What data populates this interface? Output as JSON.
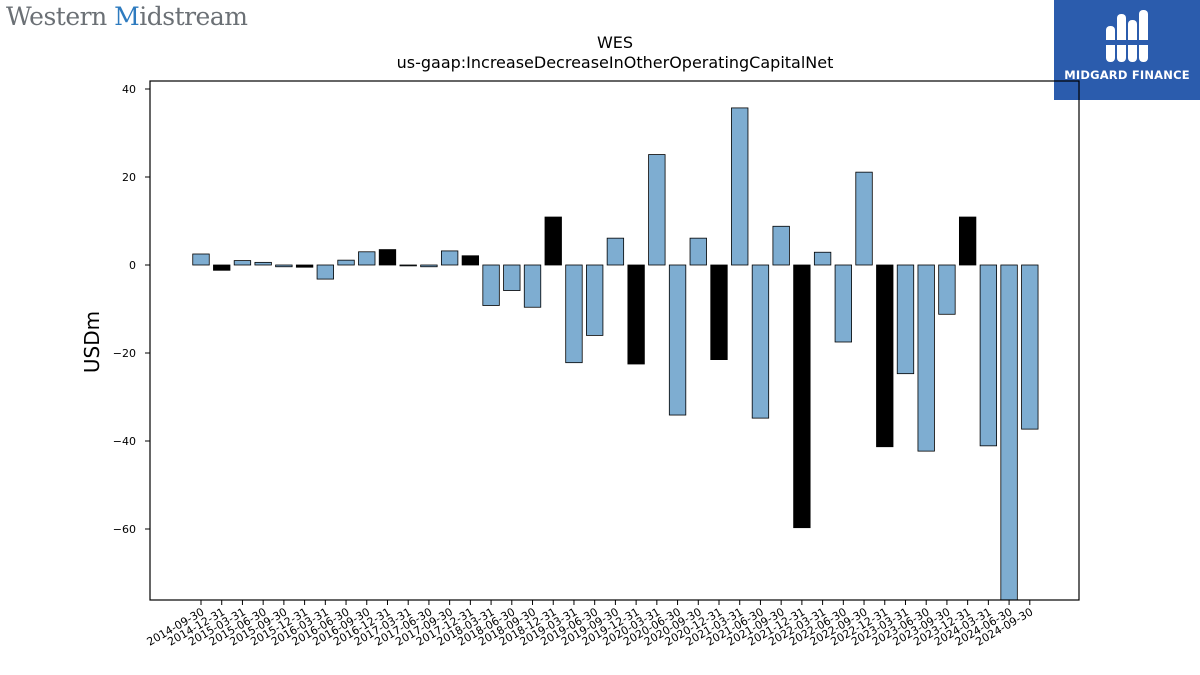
{
  "header": {
    "left_brand_prefix": "Western ",
    "left_brand_mark": "M",
    "left_brand_suffix": "idstream",
    "right_brand": "MIDGARD FINANCE"
  },
  "colors": {
    "normal": "#7eadd1",
    "q4": "#000000",
    "logo_bg": "#2b5cad"
  },
  "chart_data": {
    "type": "bar",
    "title": "WES",
    "subtitle": "us-gaap:IncreaseDecreaseInOtherOperatingCapitalNet",
    "xlabel": "",
    "ylabel": "USDm",
    "ylim": [
      -76.5,
      42.0
    ],
    "yticks": [
      40,
      20,
      0,
      -20,
      -40,
      -60
    ],
    "ytick_labels": [
      "40",
      "20",
      "0",
      "−20",
      "−40",
      "−60"
    ],
    "grid": false,
    "categories": [
      "2014-09-30",
      "2014-12-31",
      "2015-03-31",
      "2015-06-30",
      "2015-09-30",
      "2015-12-31",
      "2016-03-31",
      "2016-06-30",
      "2016-09-30",
      "2016-12-31",
      "2017-03-31",
      "2017-06-30",
      "2017-09-30",
      "2017-12-31",
      "2018-03-31",
      "2018-06-30",
      "2018-09-30",
      "2018-12-31",
      "2019-03-31",
      "2019-06-30",
      "2019-09-30",
      "2019-12-31",
      "2020-03-31",
      "2020-06-30",
      "2020-09-30",
      "2020-12-31",
      "2021-03-31",
      "2021-06-30",
      "2021-09-30",
      "2021-12-31",
      "2022-03-31",
      "2022-06-30",
      "2022-09-30",
      "2022-12-31",
      "2023-03-31",
      "2023-06-30",
      "2023-09-30",
      "2023-12-31",
      "2024-03-31",
      "2024-06-30",
      "2024-09-30"
    ],
    "values": [
      2.5,
      -1.2,
      1.0,
      0.6,
      -0.4,
      -0.5,
      -3.2,
      1.1,
      3.0,
      3.5,
      -0.2,
      -0.4,
      3.2,
      2.1,
      -9.2,
      -5.8,
      -9.6,
      10.9,
      -22.2,
      -16.0,
      6.1,
      -22.5,
      25.1,
      -34.1,
      6.1,
      -21.5,
      35.7,
      -34.8,
      8.8,
      -59.7,
      2.9,
      -17.5,
      21.1,
      -41.3,
      -24.7,
      -42.3,
      -11.2,
      10.9,
      -41.1,
      -76.5,
      -37.3
    ],
    "highlight": [
      false,
      true,
      false,
      false,
      false,
      true,
      false,
      false,
      false,
      true,
      false,
      false,
      false,
      true,
      false,
      false,
      false,
      true,
      false,
      false,
      false,
      true,
      false,
      false,
      false,
      true,
      false,
      false,
      false,
      true,
      false,
      false,
      false,
      true,
      false,
      false,
      false,
      true,
      false,
      false,
      false
    ]
  }
}
